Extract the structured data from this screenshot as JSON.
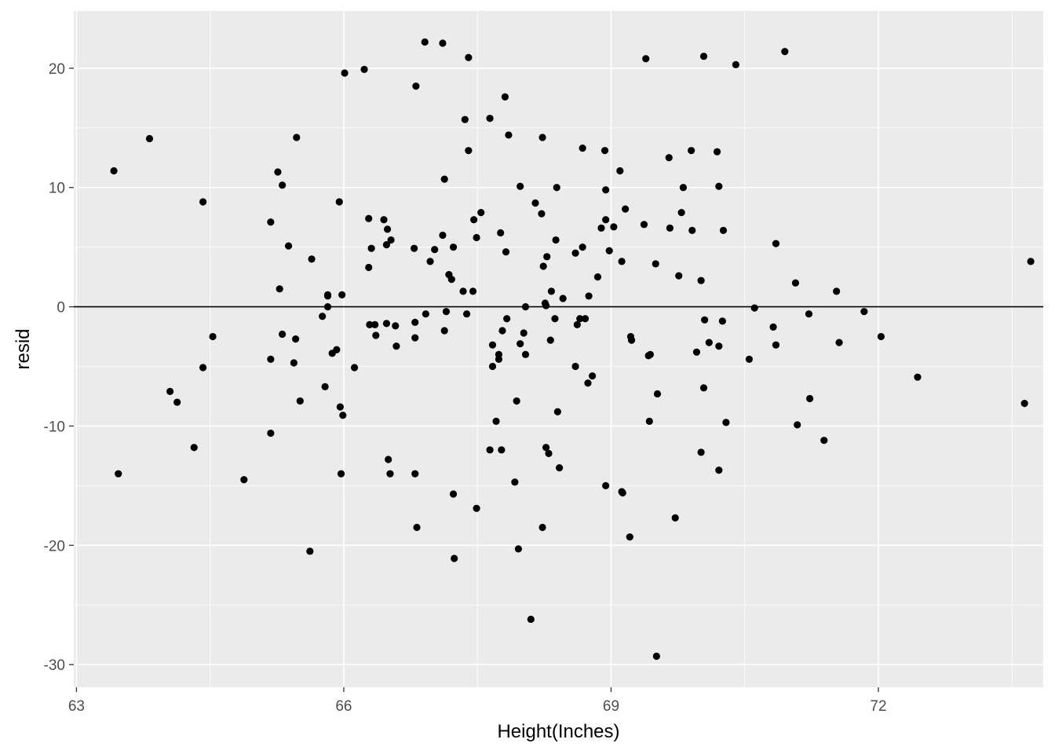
{
  "chart_data": {
    "type": "scatter",
    "title": "",
    "xlabel": "Height(Inches)",
    "ylabel": "resid",
    "xlim": [
      62.97,
      73.85
    ],
    "ylim": [
      -31.9,
      24.8
    ],
    "x_ticks": [
      63,
      66,
      69,
      72
    ],
    "x_tick_labels": [
      "63",
      "66",
      "69",
      "72"
    ],
    "y_ticks": [
      -30,
      -20,
      -10,
      0,
      10,
      20
    ],
    "y_tick_labels": [
      "-30",
      "-20",
      "-10",
      "0",
      "10",
      "20"
    ],
    "reference_line": {
      "y": 0
    },
    "grid": true,
    "colors": {
      "panel": "#EBEBEB",
      "grid": "#FFFFFF",
      "point": "#000000",
      "reference_line": "#000000"
    },
    "points": [
      [
        63.42,
        11.4
      ],
      [
        63.47,
        -14.0
      ],
      [
        63.82,
        14.1
      ],
      [
        64.05,
        -7.1
      ],
      [
        64.13,
        -8.0
      ],
      [
        64.32,
        -11.8
      ],
      [
        64.42,
        8.8
      ],
      [
        64.42,
        -5.1
      ],
      [
        64.53,
        -2.5
      ],
      [
        64.88,
        -14.5
      ],
      [
        65.18,
        7.1
      ],
      [
        65.18,
        -4.4
      ],
      [
        65.18,
        -10.6
      ],
      [
        65.26,
        11.3
      ],
      [
        65.28,
        1.5
      ],
      [
        65.31,
        10.2
      ],
      [
        65.31,
        -2.3
      ],
      [
        65.38,
        5.1
      ],
      [
        65.44,
        -4.7
      ],
      [
        65.46,
        -2.7
      ],
      [
        65.47,
        14.2
      ],
      [
        65.51,
        -7.9
      ],
      [
        65.62,
        -20.5
      ],
      [
        65.64,
        4.0
      ],
      [
        65.76,
        -0.8
      ],
      [
        65.79,
        -6.7
      ],
      [
        65.82,
        0.9
      ],
      [
        65.82,
        0.0
      ],
      [
        65.82,
        1.0
      ],
      [
        65.87,
        -3.9
      ],
      [
        65.92,
        -3.6
      ],
      [
        65.95,
        8.8
      ],
      [
        65.96,
        -8.4
      ],
      [
        65.97,
        -14.0
      ],
      [
        65.98,
        1.0
      ],
      [
        65.99,
        -9.1
      ],
      [
        66.01,
        19.6
      ],
      [
        66.12,
        -5.1
      ],
      [
        66.23,
        19.9
      ],
      [
        66.28,
        7.4
      ],
      [
        66.28,
        3.3
      ],
      [
        66.29,
        -1.5
      ],
      [
        66.31,
        4.9
      ],
      [
        66.35,
        -1.5
      ],
      [
        66.36,
        -2.4
      ],
      [
        66.45,
        7.3
      ],
      [
        66.48,
        -1.4
      ],
      [
        66.48,
        5.2
      ],
      [
        66.49,
        6.5
      ],
      [
        66.5,
        -12.8
      ],
      [
        66.52,
        -14.0
      ],
      [
        66.53,
        5.6
      ],
      [
        66.58,
        -1.6
      ],
      [
        66.59,
        -3.3
      ],
      [
        66.79,
        4.9
      ],
      [
        66.8,
        -1.3
      ],
      [
        66.8,
        -2.6
      ],
      [
        66.8,
        -14.0
      ],
      [
        66.81,
        18.5
      ],
      [
        66.82,
        -18.5
      ],
      [
        66.91,
        22.2
      ],
      [
        66.92,
        -0.6
      ],
      [
        66.97,
        3.8
      ],
      [
        67.02,
        4.8
      ],
      [
        67.11,
        22.1
      ],
      [
        67.11,
        6.0
      ],
      [
        67.13,
        10.7
      ],
      [
        67.13,
        -2.0
      ],
      [
        67.15,
        -0.4
      ],
      [
        67.18,
        2.7
      ],
      [
        67.21,
        2.3
      ],
      [
        67.23,
        5.0
      ],
      [
        67.23,
        -15.7
      ],
      [
        67.24,
        -21.1
      ],
      [
        67.34,
        1.3
      ],
      [
        67.36,
        15.7
      ],
      [
        67.38,
        -0.6
      ],
      [
        67.4,
        20.9
      ],
      [
        67.4,
        13.1
      ],
      [
        67.45,
        1.3
      ],
      [
        67.46,
        7.3
      ],
      [
        67.49,
        5.8
      ],
      [
        67.49,
        -16.9
      ],
      [
        67.54,
        7.9
      ],
      [
        67.64,
        15.8
      ],
      [
        67.64,
        -12.0
      ],
      [
        67.67,
        -3.2
      ],
      [
        67.67,
        -5.0
      ],
      [
        67.71,
        -9.6
      ],
      [
        67.74,
        -4.4
      ],
      [
        67.74,
        -4.0
      ],
      [
        67.76,
        6.2
      ],
      [
        67.77,
        -12.0
      ],
      [
        67.78,
        -2.0
      ],
      [
        67.81,
        17.6
      ],
      [
        67.82,
        4.6
      ],
      [
        67.83,
        -1.0
      ],
      [
        67.85,
        14.4
      ],
      [
        67.92,
        -14.7
      ],
      [
        67.94,
        -7.9
      ],
      [
        67.96,
        -20.3
      ],
      [
        67.98,
        10.1
      ],
      [
        67.98,
        -3.1
      ],
      [
        68.02,
        -2.2
      ],
      [
        68.04,
        0.0
      ],
      [
        68.04,
        -4.0
      ],
      [
        68.1,
        -26.2
      ],
      [
        68.15,
        8.7
      ],
      [
        68.22,
        7.8
      ],
      [
        68.23,
        14.2
      ],
      [
        68.23,
        -18.5
      ],
      [
        68.24,
        3.4
      ],
      [
        68.26,
        0.3
      ],
      [
        68.27,
        0.1
      ],
      [
        68.27,
        -11.8
      ],
      [
        68.28,
        4.2
      ],
      [
        68.3,
        -12.3
      ],
      [
        68.32,
        -2.8
      ],
      [
        68.33,
        1.3
      ],
      [
        68.37,
        -1.0
      ],
      [
        68.38,
        5.6
      ],
      [
        68.39,
        10.0
      ],
      [
        68.4,
        -8.8
      ],
      [
        68.42,
        -13.5
      ],
      [
        68.46,
        0.7
      ],
      [
        68.6,
        -5.0
      ],
      [
        68.6,
        4.5
      ],
      [
        68.62,
        -1.5
      ],
      [
        68.65,
        -1.0
      ],
      [
        68.68,
        13.3
      ],
      [
        68.68,
        5.0
      ],
      [
        68.71,
        -1.0
      ],
      [
        68.74,
        -6.4
      ],
      [
        68.75,
        0.9
      ],
      [
        68.79,
        -5.8
      ],
      [
        68.85,
        2.5
      ],
      [
        68.89,
        6.6
      ],
      [
        68.93,
        13.1
      ],
      [
        68.94,
        7.3
      ],
      [
        68.94,
        9.8
      ],
      [
        68.94,
        -15.0
      ],
      [
        68.98,
        4.7
      ],
      [
        69.03,
        6.7
      ],
      [
        69.1,
        11.4
      ],
      [
        69.12,
        3.8
      ],
      [
        69.12,
        -15.5
      ],
      [
        69.13,
        -15.6
      ],
      [
        69.16,
        8.2
      ],
      [
        69.21,
        -19.3
      ],
      [
        69.22,
        -2.5
      ],
      [
        69.23,
        -2.8
      ],
      [
        69.37,
        6.9
      ],
      [
        69.39,
        20.8
      ],
      [
        69.42,
        -4.1
      ],
      [
        69.43,
        -9.6
      ],
      [
        69.44,
        -4.0
      ],
      [
        69.5,
        3.6
      ],
      [
        69.51,
        -29.3
      ],
      [
        69.52,
        -7.3
      ],
      [
        69.65,
        12.5
      ],
      [
        69.66,
        6.6
      ],
      [
        69.72,
        -17.7
      ],
      [
        69.76,
        2.6
      ],
      [
        69.79,
        7.9
      ],
      [
        69.81,
        10.0
      ],
      [
        69.9,
        13.1
      ],
      [
        69.91,
        6.4
      ],
      [
        69.96,
        -3.8
      ],
      [
        70.01,
        -12.2
      ],
      [
        70.01,
        2.2
      ],
      [
        70.04,
        21.0
      ],
      [
        70.04,
        -6.8
      ],
      [
        70.05,
        -1.1
      ],
      [
        70.1,
        -3.0
      ],
      [
        70.19,
        13.0
      ],
      [
        70.21,
        10.1
      ],
      [
        70.21,
        -3.3
      ],
      [
        70.21,
        -13.7
      ],
      [
        70.25,
        -1.2
      ],
      [
        70.26,
        6.4
      ],
      [
        70.29,
        -9.7
      ],
      [
        70.4,
        20.3
      ],
      [
        70.55,
        -4.4
      ],
      [
        70.61,
        -0.1
      ],
      [
        70.82,
        -1.7
      ],
      [
        70.85,
        5.3
      ],
      [
        70.85,
        -3.2
      ],
      [
        70.95,
        21.4
      ],
      [
        71.07,
        2.0
      ],
      [
        71.09,
        -9.9
      ],
      [
        71.22,
        -0.6
      ],
      [
        71.23,
        -7.7
      ],
      [
        71.39,
        -11.2
      ],
      [
        71.53,
        1.3
      ],
      [
        71.56,
        -3.0
      ],
      [
        71.84,
        -0.4
      ],
      [
        72.03,
        -2.5
      ],
      [
        72.44,
        -5.9
      ],
      [
        73.64,
        -8.1
      ],
      [
        73.71,
        3.8
      ]
    ]
  }
}
